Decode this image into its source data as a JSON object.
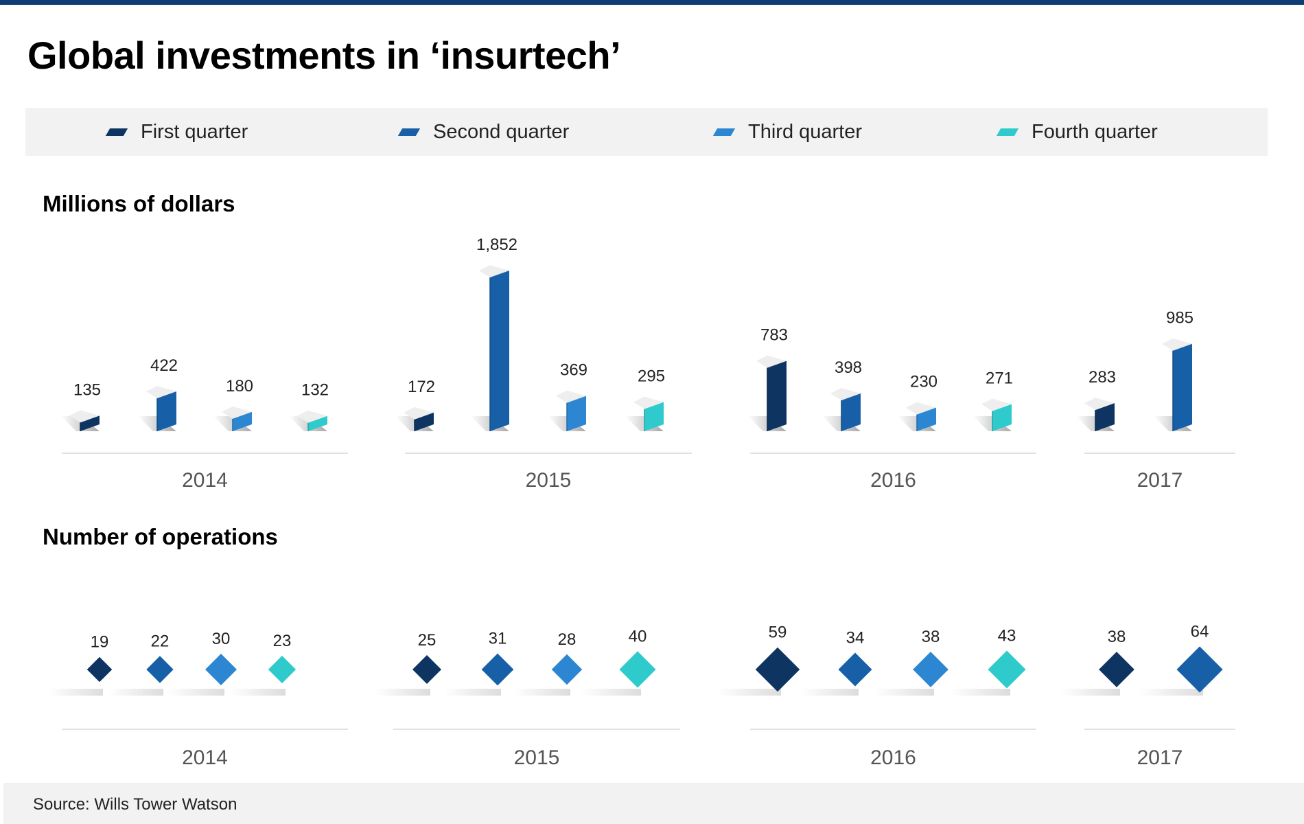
{
  "title": "Global investments in ‘insurtech’",
  "legend": [
    {
      "label": "First quarter",
      "color": "#0e3462"
    },
    {
      "label": "Second quarter",
      "color": "#1760a8"
    },
    {
      "label": "Third quarter",
      "color": "#2d86d1"
    },
    {
      "label": "Fourth quarter",
      "color": "#2fcbcc"
    }
  ],
  "source": "Source: Wills Tower Watson",
  "chart_data": [
    {
      "type": "bar",
      "title": "Millions of dollars",
      "categories": [
        "2014",
        "2015",
        "2016",
        "2017"
      ],
      "series": [
        {
          "name": "First quarter",
          "values": [
            135,
            172,
            783,
            283
          ]
        },
        {
          "name": "Second quarter",
          "values": [
            422,
            1852,
            398,
            985
          ]
        },
        {
          "name": "Third quarter",
          "values": [
            180,
            369,
            230,
            null
          ]
        },
        {
          "name": "Fourth quarter",
          "values": [
            132,
            295,
            271,
            null
          ]
        }
      ],
      "labels": [
        [
          "135",
          "422",
          "180",
          "132"
        ],
        [
          "172",
          "1,852",
          "369",
          "295"
        ],
        [
          "783",
          "398",
          "230",
          "271"
        ],
        [
          "283",
          "985"
        ]
      ],
      "ylim": [
        0,
        1852
      ]
    },
    {
      "type": "scatter",
      "title": "Number of operations",
      "categories": [
        "2014",
        "2015",
        "2016",
        "2017"
      ],
      "series": [
        {
          "name": "First quarter",
          "values": [
            19,
            25,
            59,
            38
          ]
        },
        {
          "name": "Second quarter",
          "values": [
            22,
            31,
            34,
            64
          ]
        },
        {
          "name": "Third quarter",
          "values": [
            30,
            28,
            38,
            null
          ]
        },
        {
          "name": "Fourth quarter",
          "values": [
            23,
            40,
            43,
            null
          ]
        }
      ],
      "labels": [
        [
          "19",
          "22",
          "30",
          "23"
        ],
        [
          "25",
          "31",
          "28",
          "40"
        ],
        [
          "59",
          "34",
          "38",
          "43"
        ],
        [
          "38",
          "64"
        ]
      ]
    }
  ]
}
